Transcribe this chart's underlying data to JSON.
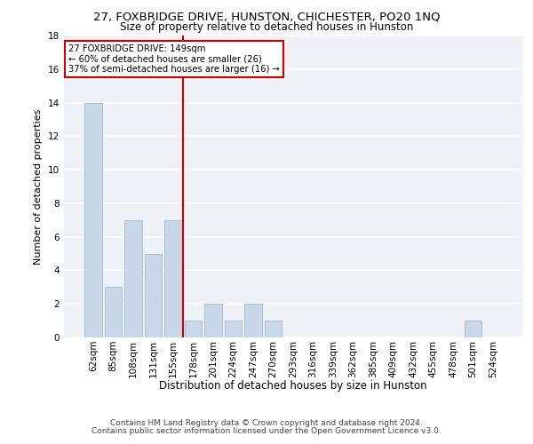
{
  "title1": "27, FOXBRIDGE DRIVE, HUNSTON, CHICHESTER, PO20 1NQ",
  "title2": "Size of property relative to detached houses in Hunston",
  "xlabel": "Distribution of detached houses by size in Hunston",
  "ylabel": "Number of detached properties",
  "categories": [
    "62sqm",
    "85sqm",
    "108sqm",
    "131sqm",
    "155sqm",
    "178sqm",
    "201sqm",
    "224sqm",
    "247sqm",
    "270sqm",
    "293sqm",
    "316sqm",
    "339sqm",
    "362sqm",
    "385sqm",
    "409sqm",
    "432sqm",
    "455sqm",
    "478sqm",
    "501sqm",
    "524sqm"
  ],
  "values": [
    14,
    3,
    7,
    5,
    7,
    1,
    2,
    1,
    2,
    1,
    0,
    0,
    0,
    0,
    0,
    0,
    0,
    0,
    0,
    1,
    0
  ],
  "bar_color": "#c8d8e8",
  "bar_edgecolor": "#a0b8cc",
  "vline_x": 4.5,
  "vline_color": "#cc0000",
  "annotation_line1": "27 FOXBRIDGE DRIVE: 149sqm",
  "annotation_line2": "← 60% of detached houses are smaller (26)",
  "annotation_line3": "37% of semi-detached houses are larger (16) →",
  "annotation_box_color": "#ffffff",
  "annotation_box_edgecolor": "#cc0000",
  "ylim": [
    0,
    18
  ],
  "yticks": [
    0,
    2,
    4,
    6,
    8,
    10,
    12,
    14,
    16,
    18
  ],
  "footer1": "Contains HM Land Registry data © Crown copyright and database right 2024.",
  "footer2": "Contains public sector information licensed under the Open Government Licence v3.0.",
  "bg_color": "#eef2f7",
  "grid_color": "#ffffff",
  "title1_fontsize": 9.5,
  "title2_fontsize": 8.5,
  "ylabel_fontsize": 8,
  "xlabel_fontsize": 8.5,
  "tick_fontsize": 7.5,
  "footer_fontsize": 6.5
}
